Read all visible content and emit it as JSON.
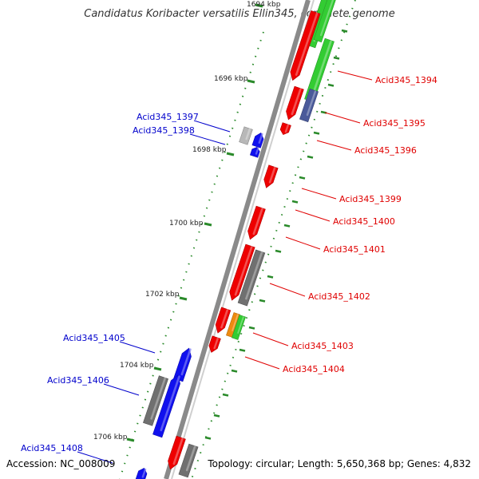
{
  "title": "Candidatus Koribacter versatilis Ellin345, complete genome",
  "footer": {
    "accession": "Accession: NC_008009",
    "topology": "Topology: circular; Length: 5,650,368 bp; Genes: 4,832"
  },
  "colors": {
    "backbone": "#8a8a8a",
    "tick": "#2a8a2a",
    "dot": "#2a8a2a",
    "label_right": "#e00000",
    "label_left": "#0000cc",
    "forward_gene": "#ee0000",
    "reverse_gene": "#1010ee",
    "grey_feature": "#707070",
    "green_feature": "#33cc33",
    "orange_feature": "#ee8a10",
    "slate_feature": "#4a5a9a"
  },
  "scale": {
    "unit": "kbp",
    "tick_labels": [
      "1694 kbp",
      "1696 kbp",
      "1698 kbp",
      "1700 kbp",
      "1702 kbp",
      "1704 kbp",
      "1706 kbp"
    ]
  },
  "gene_labels_right": [
    "Acid345_1394",
    "Acid345_1395",
    "Acid345_1396",
    "Acid345_1399",
    "Acid345_1400",
    "Acid345_1401",
    "Acid345_1402",
    "Acid345_1403",
    "Acid345_1404"
  ],
  "gene_labels_left": [
    "Acid345_1397",
    "Acid345_1398",
    "Acid345_1405",
    "Acid345_1406",
    "Acid345_1408"
  ]
}
